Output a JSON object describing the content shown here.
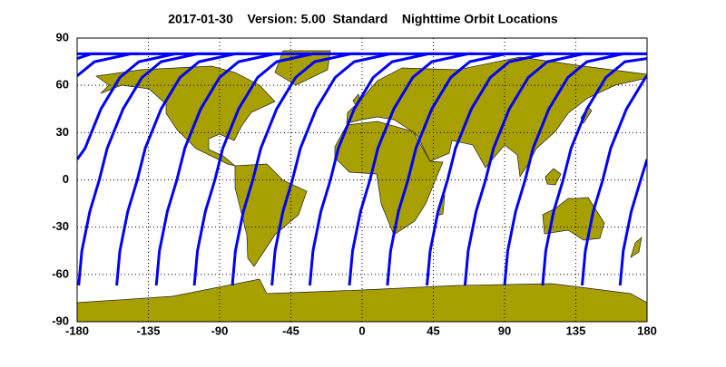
{
  "chart_data": {
    "type": "line",
    "title": "2017-01-30    Version: 5.00  Standard    Nighttime Orbit Locations",
    "xlim": [
      -180,
      180
    ],
    "ylim": [
      -90,
      90
    ],
    "xticks": [
      -180,
      -135,
      -90,
      -45,
      0,
      45,
      90,
      135,
      180
    ],
    "yticks": [
      -90,
      -60,
      -30,
      0,
      30,
      60,
      90
    ],
    "grid": true,
    "color": "#0000ff",
    "series": [
      {
        "x": [
          -179,
          -177,
          -172,
          -166,
          -161,
          -151,
          -139,
          -127,
          -104,
          -74
        ],
        "y": [
          -67,
          -45,
          -20,
          0,
          20,
          45,
          65,
          75,
          80,
          80
        ]
      },
      {
        "x": [
          -155,
          -153,
          -148,
          -142,
          -137,
          -127,
          -115,
          -103,
          -80,
          -50
        ],
        "y": [
          -67,
          -45,
          -20,
          0,
          20,
          45,
          65,
          75,
          80,
          80
        ]
      },
      {
        "x": [
          -130,
          -128,
          -123,
          -117,
          -112,
          -102,
          -90,
          -78,
          -55,
          -25
        ],
        "y": [
          -67,
          -45,
          -20,
          0,
          20,
          45,
          65,
          75,
          80,
          80
        ]
      },
      {
        "x": [
          -106,
          -104,
          -99,
          -93,
          -88,
          -78,
          -66,
          -54,
          -31,
          -1
        ],
        "y": [
          -67,
          -45,
          -20,
          0,
          20,
          45,
          65,
          75,
          80,
          80
        ]
      },
      {
        "x": [
          -82,
          -80,
          -75,
          -69,
          -64,
          -54,
          -42,
          -30,
          -7,
          23
        ],
        "y": [
          -67,
          -45,
          -20,
          0,
          20,
          45,
          65,
          75,
          80,
          80
        ]
      },
      {
        "x": [
          -57,
          -55,
          -50,
          -44,
          -39,
          -29,
          -17,
          -5,
          18,
          48
        ],
        "y": [
          -67,
          -45,
          -20,
          0,
          20,
          45,
          65,
          75,
          80,
          80
        ]
      },
      {
        "x": [
          -33,
          -31,
          -26,
          -20,
          -15,
          -5,
          7,
          19,
          42,
          72
        ],
        "y": [
          -67,
          -45,
          -20,
          0,
          20,
          45,
          65,
          75,
          80,
          80
        ]
      },
      {
        "x": [
          -8,
          -6,
          -1,
          5,
          10,
          20,
          32,
          44,
          67,
          97
        ],
        "y": [
          -67,
          -45,
          -20,
          0,
          20,
          45,
          65,
          75,
          80,
          80
        ]
      },
      {
        "x": [
          16,
          18,
          23,
          29,
          34,
          44,
          56,
          68,
          91,
          121
        ],
        "y": [
          -67,
          -45,
          -20,
          0,
          20,
          45,
          65,
          75,
          80,
          80
        ]
      },
      {
        "x": [
          41,
          43,
          48,
          54,
          59,
          69,
          81,
          93,
          116,
          146
        ],
        "y": [
          -67,
          -45,
          -20,
          0,
          20,
          45,
          65,
          75,
          80,
          80
        ]
      },
      {
        "x": [
          65,
          67,
          72,
          78,
          83,
          93,
          105,
          117,
          140,
          170
        ],
        "y": [
          -67,
          -45,
          -20,
          0,
          20,
          45,
          65,
          75,
          80,
          80
        ]
      },
      {
        "x": [
          90,
          92,
          97,
          103,
          108,
          118,
          130,
          142,
          165,
          180,
          null,
          -180,
          -165
        ],
        "y": [
          -67,
          -45,
          -20,
          0,
          20,
          45,
          65,
          75,
          80,
          80,
          null,
          80,
          80
        ]
      },
      {
        "x": [
          114,
          116,
          121,
          127,
          132,
          142,
          154,
          166,
          180,
          null,
          -180,
          -171,
          -141
        ],
        "y": [
          -67,
          -45,
          -20,
          0,
          20,
          45,
          65,
          75,
          77,
          null,
          77,
          80,
          80
        ]
      },
      {
        "x": [
          139,
          141,
          146,
          152,
          157,
          167,
          179,
          180,
          null,
          -180,
          -169,
          -146,
          -116
        ],
        "y": [
          -67,
          -45,
          -20,
          0,
          20,
          45,
          65,
          66,
          null,
          66,
          75,
          80,
          80
        ]
      },
      {
        "x": [
          163,
          165,
          170,
          176,
          180,
          null,
          -180,
          -175,
          -165,
          -153,
          -141,
          -118,
          -88
        ],
        "y": [
          -67,
          -45,
          -20,
          0,
          13,
          null,
          13,
          20,
          45,
          65,
          75,
          80,
          80
        ]
      }
    ]
  }
}
